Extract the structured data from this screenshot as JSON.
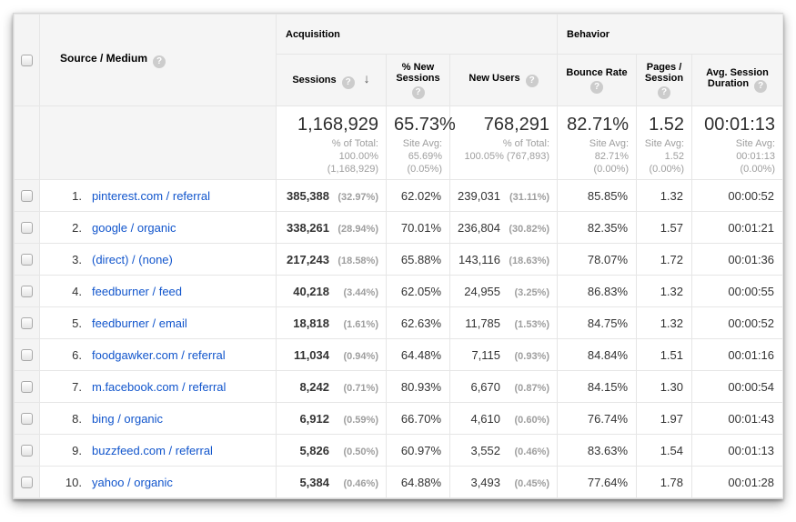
{
  "icons": {
    "help": "?",
    "sort_desc": "↓"
  },
  "colors": {
    "link": "#1155cc",
    "header_bg": "#f5f5f5",
    "border": "#e6e6e6",
    "muted": "#9e9e9e",
    "text": "#333333"
  },
  "header": {
    "source_medium": "Source / Medium",
    "groups": {
      "acquisition": "Acquisition",
      "behavior": "Behavior"
    },
    "columns": {
      "sessions": "Sessions",
      "new_sessions": "% New Sessions",
      "new_users": "New Users",
      "bounce_rate": "Bounce Rate",
      "pages_session": "Pages / Session",
      "avg_duration": "Avg. Session Duration"
    }
  },
  "totals": {
    "sessions": "1,168,929",
    "sessions_sub": "% of Total:\n100.00%\n(1,168,929)",
    "new_sessions": "65.73%",
    "new_sessions_sub": "Site Avg:\n65.69%\n(0.05%)",
    "new_users": "768,291",
    "new_users_sub": "% of Total:\n100.05% (767,893)",
    "bounce_rate": "82.71%",
    "bounce_rate_sub": "Site Avg:\n82.71%\n(0.00%)",
    "pages": "1.52",
    "pages_sub": "Site Avg:\n1.52\n(0.00%)",
    "duration": "00:01:13",
    "duration_sub": "Site Avg:\n00:01:13\n(0.00%)"
  },
  "table": {
    "rows": [
      {
        "rank": "1.",
        "source": "pinterest.com / referral",
        "sessions": "385,388",
        "sessions_pct": "(32.97%)",
        "new_sessions": "62.02%",
        "new_users": "239,031",
        "new_users_pct": "(31.11%)",
        "bounce": "85.85%",
        "pages": "1.32",
        "duration": "00:00:52"
      },
      {
        "rank": "2.",
        "source": "google / organic",
        "sessions": "338,261",
        "sessions_pct": "(28.94%)",
        "new_sessions": "70.01%",
        "new_users": "236,804",
        "new_users_pct": "(30.82%)",
        "bounce": "82.35%",
        "pages": "1.57",
        "duration": "00:01:21"
      },
      {
        "rank": "3.",
        "source": "(direct) / (none)",
        "sessions": "217,243",
        "sessions_pct": "(18.58%)",
        "new_sessions": "65.88%",
        "new_users": "143,116",
        "new_users_pct": "(18.63%)",
        "bounce": "78.07%",
        "pages": "1.72",
        "duration": "00:01:36"
      },
      {
        "rank": "4.",
        "source": "feedburner / feed",
        "sessions": "40,218",
        "sessions_pct": "(3.44%)",
        "new_sessions": "62.05%",
        "new_users": "24,955",
        "new_users_pct": "(3.25%)",
        "bounce": "86.83%",
        "pages": "1.32",
        "duration": "00:00:55"
      },
      {
        "rank": "5.",
        "source": "feedburner / email",
        "sessions": "18,818",
        "sessions_pct": "(1.61%)",
        "new_sessions": "62.63%",
        "new_users": "11,785",
        "new_users_pct": "(1.53%)",
        "bounce": "84.75%",
        "pages": "1.32",
        "duration": "00:00:52"
      },
      {
        "rank": "6.",
        "source": "foodgawker.com / referral",
        "sessions": "11,034",
        "sessions_pct": "(0.94%)",
        "new_sessions": "64.48%",
        "new_users": "7,115",
        "new_users_pct": "(0.93%)",
        "bounce": "84.84%",
        "pages": "1.51",
        "duration": "00:01:16"
      },
      {
        "rank": "7.",
        "source": "m.facebook.com / referral",
        "sessions": "8,242",
        "sessions_pct": "(0.71%)",
        "new_sessions": "80.93%",
        "new_users": "6,670",
        "new_users_pct": "(0.87%)",
        "bounce": "84.15%",
        "pages": "1.30",
        "duration": "00:00:54"
      },
      {
        "rank": "8.",
        "source": "bing / organic",
        "sessions": "6,912",
        "sessions_pct": "(0.59%)",
        "new_sessions": "66.70%",
        "new_users": "4,610",
        "new_users_pct": "(0.60%)",
        "bounce": "76.74%",
        "pages": "1.97",
        "duration": "00:01:43"
      },
      {
        "rank": "9.",
        "source": "buzzfeed.com / referral",
        "sessions": "5,826",
        "sessions_pct": "(0.50%)",
        "new_sessions": "60.97%",
        "new_users": "3,552",
        "new_users_pct": "(0.46%)",
        "bounce": "83.63%",
        "pages": "1.54",
        "duration": "00:01:13"
      },
      {
        "rank": "10.",
        "source": "yahoo / organic",
        "sessions": "5,384",
        "sessions_pct": "(0.46%)",
        "new_sessions": "64.88%",
        "new_users": "3,493",
        "new_users_pct": "(0.45%)",
        "bounce": "77.64%",
        "pages": "1.78",
        "duration": "00:01:28"
      }
    ]
  }
}
